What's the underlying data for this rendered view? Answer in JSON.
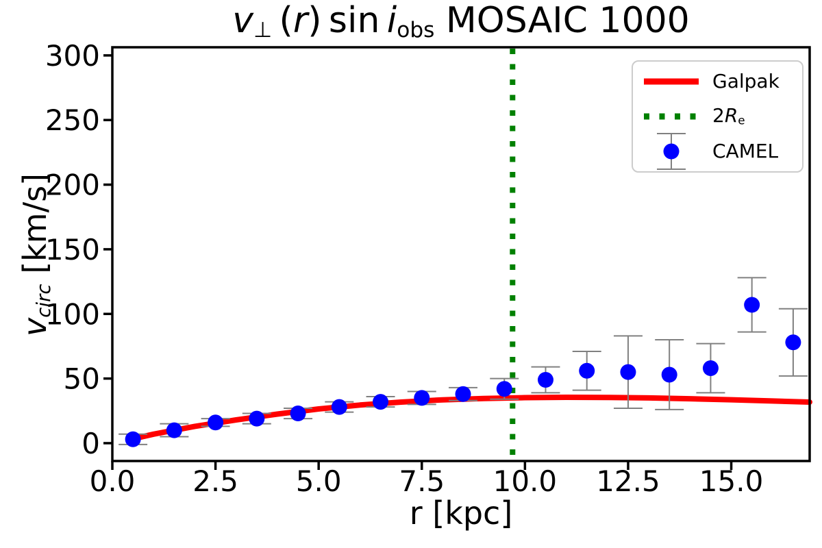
{
  "figure": {
    "background_color": "#ffffff",
    "frame_color": "#000000",
    "tick_label_color": "#000000",
    "legend_border_color": "#cccccc"
  },
  "title_segments": [
    {
      "t": "v",
      "s": "i"
    },
    {
      "t": "⊥",
      "s": "sub"
    },
    {
      "t": " (",
      "s": ""
    },
    {
      "t": "r",
      "s": "i"
    },
    {
      "t": ") sin ",
      "s": ""
    },
    {
      "t": "i",
      "s": "i"
    },
    {
      "t": "obs",
      "s": "sub"
    },
    {
      "t": " MOSAIC 1000",
      "s": ""
    }
  ],
  "ylabel_segments": [
    {
      "t": "v",
      "s": "i"
    },
    {
      "t": "circ",
      "s": "subi"
    },
    {
      "t": " [km/s]",
      "s": ""
    }
  ],
  "legend_2re_segments": [
    {
      "t": "2",
      "s": ""
    },
    {
      "t": "R",
      "s": "i"
    },
    {
      "t": "e",
      "s": "sub"
    }
  ],
  "chart_data": {
    "type": "scatter",
    "title": "v⊥(r) sin i_obs MOSAIC 1000",
    "xlabel": "r [kpc]",
    "ylabel": "v_circ [km/s]",
    "xlim": [
      0,
      16.9
    ],
    "ylim": [
      -13.8,
      306.3
    ],
    "grid": false,
    "legend_position": "upper right",
    "x_tick_values": [
      0,
      2.5,
      5,
      7.5,
      10,
      12.5,
      15
    ],
    "x_tick_labels": [
      "0.0",
      "2.5",
      "5.0",
      "7.5",
      "10.0",
      "12.5",
      "15.0"
    ],
    "y_tick_values": [
      0,
      50,
      100,
      150,
      200,
      250,
      300
    ],
    "y_tick_labels": [
      "0",
      "50",
      "100",
      "150",
      "200",
      "250",
      "300"
    ],
    "series": [
      {
        "name": "Galpak",
        "type": "line",
        "color": "#ff0000",
        "linewidth": 8,
        "x": [
          0.45,
          1,
          2,
          3,
          4,
          5,
          6,
          7,
          8,
          9,
          10,
          11,
          12,
          13,
          14,
          15,
          16,
          16.9
        ],
        "y": [
          3,
          7,
          13,
          18,
          22.5,
          26.5,
          29.5,
          31.8,
          33.5,
          34.6,
          35.2,
          35.5,
          35.4,
          35,
          34.4,
          33.6,
          32.6,
          31.8
        ]
      },
      {
        "name": "2Re",
        "type": "vline",
        "color": "#008000",
        "linestyle": "dotted",
        "linewidth": 8,
        "x": 9.7
      },
      {
        "name": "CAMEL",
        "type": "scatter-errorbar",
        "color": "#0000ff",
        "ecolor": "#808080",
        "markersize": 11.5,
        "x": [
          0.5,
          1.5,
          2.5,
          3.5,
          4.5,
          5.5,
          6.5,
          7.5,
          8.5,
          9.5,
          10.5,
          11.5,
          12.5,
          13.5,
          14.5,
          15.5,
          16.5
        ],
        "y": [
          3,
          10,
          16,
          19,
          23,
          28,
          32,
          35,
          38,
          42,
          49,
          56,
          55,
          53,
          58,
          107,
          78
        ],
        "yerr": [
          4,
          5,
          3,
          4,
          4,
          4,
          4,
          5,
          5,
          8,
          10,
          15,
          28,
          27,
          19,
          21,
          26
        ]
      }
    ]
  }
}
